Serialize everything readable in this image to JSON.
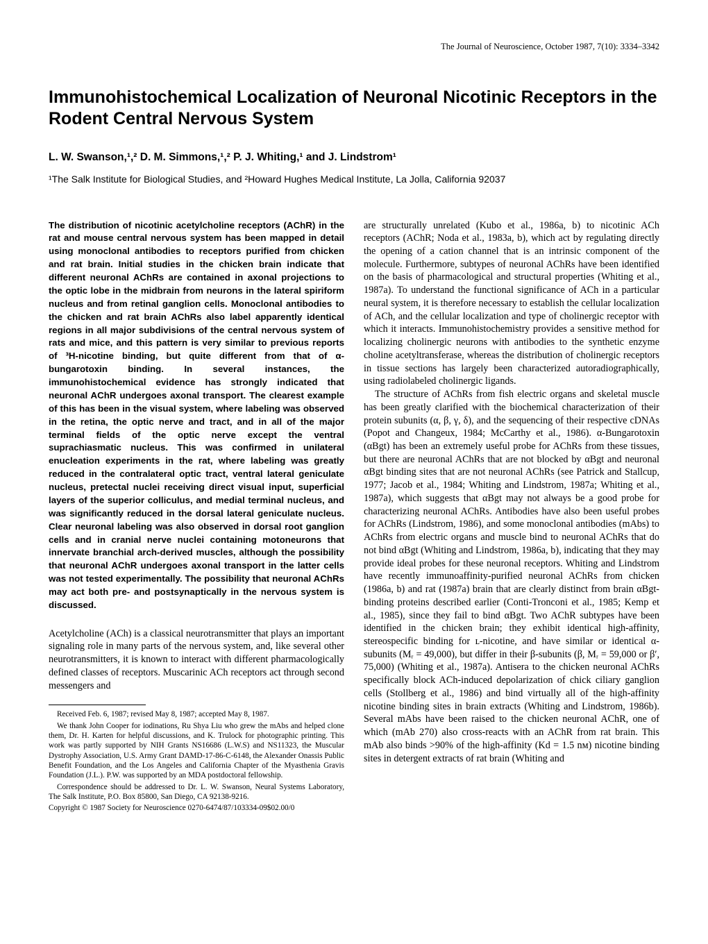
{
  "header": {
    "journal_line": "The Journal of Neuroscience, October 1987, 7(10): 3334–3342"
  },
  "title": "Immunohistochemical Localization of Neuronal Nicotinic Receptors in the Rodent Central Nervous System",
  "authors": "L. W. Swanson,¹,² D. M. Simmons,¹,² P. J. Whiting,¹ and J. Lindstrom¹",
  "affiliation": "¹The Salk Institute for Biological Studies, and ²Howard Hughes Medical Institute, La Jolla, California 92037",
  "abstract": "The distribution of nicotinic acetylcholine receptors (AChR) in the rat and mouse central nervous system has been mapped in detail using monoclonal antibodies to receptors purified from chicken and rat brain. Initial studies in the chicken brain indicate that different neuronal AChRs are contained in axonal projections to the optic lobe in the midbrain from neurons in the lateral spiriform nucleus and from retinal ganglion cells. Monoclonal antibodies to the chicken and rat brain AChRs also label apparently identical regions in all major subdivisions of the central nervous system of rats and mice, and this pattern is very similar to previous reports of ³H-nicotine binding, but quite different from that of α-bungarotoxin binding. In several instances, the immunohistochemical evidence has strongly indicated that neuronal AChR undergoes axonal transport. The clearest example of this has been in the visual system, where labeling was observed in the retina, the optic nerve and tract, and in all of the major terminal fields of the optic nerve except the ventral suprachiasmatic nucleus. This was confirmed in unilateral enucleation experiments in the rat, where labeling was greatly reduced in the contralateral optic tract, ventral lateral geniculate nucleus, pretectal nuclei receiving direct visual input, superficial layers of the superior colliculus, and medial terminal nucleus, and was significantly reduced in the dorsal lateral geniculate nucleus. Clear neuronal labeling was also observed in dorsal root ganglion cells and in cranial nerve nuclei containing motoneurons that innervate branchial arch-derived muscles, although the possibility that neuronal AChR undergoes axonal transport in the latter cells was not tested experimentally. The possibility that neuronal AChRs may act both pre- and postsynaptically in the nervous system is discussed.",
  "intro_para": "Acetylcholine (ACh) is a classical neurotransmitter that plays an important signaling role in many parts of the nervous system, and, like several other neurotransmitters, it is known to interact with different pharmacologically defined classes of receptors. Muscarinic ACh receptors act through second messengers and",
  "footnotes": {
    "received": "Received Feb. 6, 1987; revised May 8, 1987; accepted May 8, 1987.",
    "acknowledgments": "We thank John Cooper for iodinations, Ru Shya Liu who grew the mAbs and helped clone them, Dr. H. Karten for helpful discussions, and K. Trulock for photographic printing. This work was partly supported by NIH Grants NS16686 (L.W.S) and NS11323, the Muscular Dystrophy Association, U.S. Army Grant DAMD-17-86-C-6148, the Alexander Onassis Public Benefit Foundation, and the Los Angeles and California Chapter of the Myasthenia Gravis Foundation (J.L.). P.W. was supported by an MDA postdoctoral fellowship.",
    "correspondence": "Correspondence should be addressed to Dr. L. W. Swanson, Neural Systems Laboratory, The Salk Institute, P.O. Box 85800, San Diego, CA 92138-9216.",
    "copyright": "Copyright © 1987 Society for Neuroscience  0270-6474/87/103334-09$02.00/0"
  },
  "right_col": {
    "para1": "are structurally unrelated (Kubo et al., 1986a, b) to nicotinic ACh receptors (AChR; Noda et al., 1983a, b), which act by regulating directly the opening of a cation channel that is an intrinsic component of the molecule. Furthermore, subtypes of neuronal AChRs have been identified on the basis of pharmacological and structural properties (Whiting et al., 1987a). To understand the functional significance of ACh in a particular neural system, it is therefore necessary to establish the cellular localization of ACh, and the cellular localization and type of cholinergic receptor with which it interacts. Immunohistochemistry provides a sensitive method for localizing cholinergic neurons with antibodies to the synthetic enzyme choline acetyltransferase, whereas the distribution of cholinergic receptors in tissue sections has largely been characterized autoradiographically, using radiolabeled cholinergic ligands.",
    "para2": "The structure of AChRs from fish electric organs and skeletal muscle has been greatly clarified with the biochemical characterization of their protein subunits (α, β, γ, δ), and the sequencing of their respective cDNAs (Popot and Changeux, 1984; McCarthy et al., 1986). α-Bungarotoxin (αBgt) has been an extremely useful probe for AChRs from these tissues, but there are neuronal AChRs that are not blocked by αBgt and neuronal αBgt binding sites that are not neuronal AChRs (see Patrick and Stallcup, 1977; Jacob et al., 1984; Whiting and Lindstrom, 1987a; Whiting et al., 1987a), which suggests that αBgt may not always be a good probe for characterizing neuronal AChRs. Antibodies have also been useful probes for AChRs (Lindstrom, 1986), and some monoclonal antibodies (mAbs) to AChRs from electric organs and muscle bind to neuronal AChRs that do not bind αBgt (Whiting and Lindstrom, 1986a, b), indicating that they may provide ideal probes for these neuronal receptors. Whiting and Lindstrom have recently immunoaffinity-purified neuronal AChRs from chicken (1986a, b) and rat (1987a) brain that are clearly distinct from brain αBgt-binding proteins described earlier (Conti-Tronconi et al., 1985; Kemp et al., 1985), since they fail to bind αBgt. Two AChR subtypes have been identified in the chicken brain; they exhibit identical high-affinity, stereospecific binding for ʟ-nicotine, and have similar or identical α-subunits (Mᵣ = 49,000), but differ in their β-subunits (β, Mᵣ = 59,000 or β′, 75,000) (Whiting et al., 1987a). Antisera to the chicken neuronal AChRs specifically block ACh-induced depolarization of chick ciliary ganglion cells (Stollberg et al., 1986) and bind virtually all of the high-affinity nicotine binding sites in brain extracts (Whiting and Lindstrom, 1986b). Several mAbs have been raised to the chicken neuronal AChR, one of which (mAb 270) also cross-reacts with an AChR from rat brain. This mAb also binds >90% of the high-affinity (Kd = 1.5 nᴍ) nicotine binding sites in detergent extracts of rat brain (Whiting and"
  }
}
